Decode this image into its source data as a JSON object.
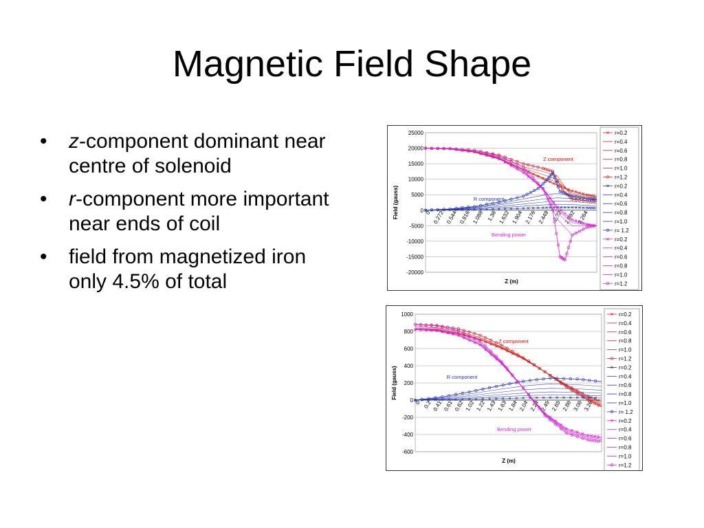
{
  "slide": {
    "title": "Magnetic Field Shape",
    "bullets": [
      {
        "em": "z",
        "text": "-component dominant near centre of solenoid"
      },
      {
        "em": "r",
        "text": "-component more important near ends of coil"
      },
      {
        "em": "",
        "text": "field from magnetized iron only 4.5% of total"
      }
    ]
  },
  "colors": {
    "z": "#cc2222",
    "r": "#2233aa",
    "bend": "#cc22cc",
    "zlabel": "#dd0000",
    "rlabel": "#2233aa",
    "blabel": "#dd22dd"
  },
  "chart_data": [
    {
      "type": "line",
      "xlabel": "Z (m)",
      "ylabel": "Field (gauss)",
      "ylim": [
        -20000,
        25000
      ],
      "yticks": [
        25000,
        20000,
        15000,
        10000,
        5000,
        0,
        -5000,
        -10000,
        -15000,
        -20000
      ],
      "x_tick_labels": [
        "0",
        "0.272",
        "0.544",
        "0.816",
        "1.088",
        "1.36",
        "1.632",
        "1.904",
        "2.176",
        "2.448",
        "2.72",
        "2.992",
        "3.264"
      ],
      "x_range": [
        0,
        3.5
      ],
      "grid": true,
      "legend_position": "right",
      "legend": [
        "r=0.2",
        "r=0.4",
        "r=0.6",
        "r=0.8",
        "r=1.0",
        "r=1.2",
        "r=0.2",
        "r=0.4",
        "r=0.6",
        "r=0.8",
        "r=1.0",
        "r= 1.2",
        "r=0.2",
        "r=0.4",
        "r=0.6",
        "r=0.8",
        "r=1.0",
        "r=1.2"
      ],
      "annotations": [
        "Z component",
        "R component",
        "Bending power"
      ],
      "series": [
        {
          "name": "r=0.2",
          "group": "z",
          "x": [
            0,
            0.5,
            1.0,
            1.5,
            2.0,
            2.4,
            2.7,
            3.0,
            3.3,
            3.5
          ],
          "values": [
            20000,
            19700,
            18700,
            16500,
            13000,
            10300,
            8000,
            6300,
            5000,
            4500
          ]
        },
        {
          "name": "r=0.4",
          "group": "z",
          "x": [
            0,
            0.5,
            1.0,
            1.5,
            2.0,
            2.4,
            2.7,
            3.0,
            3.3,
            3.5
          ],
          "values": [
            20000,
            19700,
            18700,
            16500,
            13000,
            10000,
            8000,
            6000,
            4800,
            4200
          ]
        },
        {
          "name": "r=0.6",
          "group": "z",
          "x": [
            0,
            0.5,
            1.0,
            1.5,
            2.0,
            2.4,
            2.7,
            3.0,
            3.3,
            3.5
          ],
          "values": [
            20000,
            19800,
            18800,
            16600,
            13200,
            10500,
            9000,
            5500,
            4500,
            4000
          ]
        },
        {
          "name": "r=0.8",
          "group": "z",
          "x": [
            0,
            0.5,
            1.0,
            1.5,
            2.0,
            2.4,
            2.7,
            3.0,
            3.3,
            3.5
          ],
          "values": [
            20000,
            19800,
            18900,
            16800,
            13500,
            11500,
            9800,
            5000,
            4200,
            3600
          ]
        },
        {
          "name": "r=1.0",
          "group": "z",
          "x": [
            0,
            0.5,
            1.0,
            1.5,
            2.0,
            2.4,
            2.7,
            3.0,
            3.3,
            3.5
          ],
          "values": [
            20000,
            19800,
            19000,
            17200,
            14000,
            12500,
            11000,
            4000,
            3700,
            3300
          ]
        },
        {
          "name": "r=1.2",
          "group": "z",
          "x": [
            0,
            0.5,
            1.0,
            1.5,
            2.0,
            2.4,
            2.6,
            2.8,
            3.0,
            3.3,
            3.5
          ],
          "values": [
            20000,
            19900,
            19300,
            17800,
            15000,
            13500,
            12500,
            6500,
            3500,
            3000,
            2800
          ]
        },
        {
          "name": "r=0.2",
          "group": "r",
          "x": [
            0,
            0.5,
            1.0,
            1.5,
            2.0,
            2.4,
            2.7,
            3.0,
            3.3,
            3.5
          ],
          "values": [
            0,
            80,
            200,
            400,
            600,
            800,
            900,
            900,
            800,
            700
          ]
        },
        {
          "name": "r=0.4",
          "group": "r",
          "x": [
            0,
            0.5,
            1.0,
            1.5,
            2.0,
            2.4,
            2.7,
            3.0,
            3.3,
            3.5
          ],
          "values": [
            0,
            150,
            400,
            800,
            1300,
            1700,
            1900,
            1800,
            1600,
            1400
          ]
        },
        {
          "name": "r=0.6",
          "group": "r",
          "x": [
            0,
            0.5,
            1.0,
            1.5,
            2.0,
            2.4,
            2.7,
            3.0,
            3.3,
            3.5
          ],
          "values": [
            0,
            200,
            600,
            1200,
            2000,
            2600,
            3000,
            2800,
            2400,
            2100
          ]
        },
        {
          "name": "r=0.8",
          "group": "r",
          "x": [
            0,
            0.5,
            1.0,
            1.5,
            2.0,
            2.4,
            2.7,
            3.0,
            3.3,
            3.5
          ],
          "values": [
            0,
            300,
            800,
            1700,
            2800,
            3600,
            4000,
            3700,
            3100,
            2700
          ]
        },
        {
          "name": "r=1.0",
          "group": "r",
          "x": [
            0,
            0.5,
            1.0,
            1.5,
            2.0,
            2.4,
            2.7,
            3.0,
            3.3,
            3.5
          ],
          "values": [
            0,
            350,
            1000,
            2100,
            3600,
            4800,
            5500,
            4600,
            3800,
            3200
          ]
        },
        {
          "name": "r= 1.2",
          "group": "r",
          "x": [
            0,
            0.5,
            1.0,
            1.5,
            2.0,
            2.3,
            2.5,
            2.6,
            2.75,
            3.0,
            3.3,
            3.5
          ],
          "values": [
            0,
            400,
            1200,
            2600,
            4500,
            7000,
            10000,
            12000,
            6000,
            4500,
            3800,
            3500
          ]
        },
        {
          "name": "r=0.2",
          "group": "bend",
          "x": [
            0,
            0.5,
            1.0,
            1.5,
            2.0,
            2.4,
            2.7,
            3.0,
            3.3,
            3.5
          ],
          "values": [
            20000,
            19800,
            18900,
            16600,
            12000,
            7000,
            1000,
            -3000,
            -4500,
            -5000
          ]
        },
        {
          "name": "r=0.4",
          "group": "bend",
          "x": [
            0,
            0.5,
            1.0,
            1.5,
            2.0,
            2.4,
            2.7,
            3.0,
            3.3,
            3.5
          ],
          "values": [
            20000,
            19800,
            18900,
            16700,
            12200,
            7200,
            500,
            -3500,
            -4600,
            -5000
          ]
        },
        {
          "name": "r=0.6",
          "group": "bend",
          "x": [
            0,
            0.5,
            1.0,
            1.5,
            2.0,
            2.4,
            2.7,
            3.0,
            3.3,
            3.5
          ],
          "values": [
            20000,
            19800,
            19000,
            16800,
            12500,
            7000,
            0,
            -4000,
            -4800,
            -5000
          ]
        },
        {
          "name": "r=0.8",
          "group": "bend",
          "x": [
            0,
            0.5,
            1.0,
            1.5,
            2.0,
            2.4,
            2.7,
            3.0,
            3.3,
            3.5
          ],
          "values": [
            20000,
            19800,
            19000,
            16900,
            12800,
            6500,
            -1000,
            -5000,
            -5000,
            -5000
          ]
        },
        {
          "name": "r=1.0",
          "group": "bend",
          "x": [
            0,
            0.5,
            1.0,
            1.5,
            2.0,
            2.4,
            2.7,
            3.0,
            3.3,
            3.5
          ],
          "values": [
            20000,
            19800,
            19000,
            17000,
            13000,
            7000,
            -3000,
            -8000,
            -5500,
            -5000
          ]
        },
        {
          "name": "r=1.2",
          "group": "bend",
          "x": [
            0,
            0.5,
            1.0,
            1.5,
            2.0,
            2.4,
            2.6,
            2.75,
            2.85,
            3.0,
            3.3,
            3.5
          ],
          "values": [
            20000,
            19900,
            19300,
            17500,
            14000,
            7000,
            0,
            -15000,
            -16000,
            -8000,
            -5500,
            -5000
          ]
        }
      ]
    },
    {
      "type": "line",
      "xlabel": "Z (m)",
      "ylabel": "Field (gauss)",
      "ylim": [
        -600,
        1000
      ],
      "yticks": [
        1000,
        800,
        600,
        400,
        200,
        0,
        -200,
        -400,
        -600
      ],
      "x_tick_labels": [
        "0",
        "0.2",
        "0.41",
        "0.61",
        "0.82",
        "1.02",
        "1.22",
        "1.43",
        "1.63",
        "1.84",
        "2.04",
        "2.24",
        "2.45",
        "2.65",
        "2.86",
        "3.06",
        "3.26"
      ],
      "x_range": [
        0,
        3.45
      ],
      "grid": true,
      "legend_position": "right",
      "legend": [
        "r=0.2",
        "r=0.4",
        "r=0.6",
        "r=0.8",
        "r=1.0",
        "r=1.2",
        "r=0.2",
        "r=0.4",
        "r=0.6",
        "r=0.8",
        "r=1.0",
        "r= 1.2",
        "r=0.2",
        "r=0.4",
        "r=0.6",
        "r=0.8",
        "r=1.0",
        "r=1.2"
      ],
      "annotations": [
        "Z component",
        "R component",
        "Bending power"
      ],
      "series": [
        {
          "name": "r=0.2",
          "group": "z",
          "x": [
            0,
            0.4,
            0.8,
            1.2,
            1.6,
            2.0,
            2.4,
            2.8,
            3.2,
            3.45
          ],
          "values": [
            820,
            810,
            770,
            700,
            600,
            480,
            330,
            180,
            50,
            -20
          ]
        },
        {
          "name": "r=0.4",
          "group": "z",
          "x": [
            0,
            0.4,
            0.8,
            1.2,
            1.6,
            2.0,
            2.4,
            2.8,
            3.2,
            3.45
          ],
          "values": [
            825,
            815,
            775,
            705,
            605,
            480,
            330,
            175,
            40,
            -35
          ]
        },
        {
          "name": "r=0.6",
          "group": "z",
          "x": [
            0,
            0.4,
            0.8,
            1.2,
            1.6,
            2.0,
            2.4,
            2.8,
            3.2,
            3.45
          ],
          "values": [
            830,
            820,
            780,
            710,
            610,
            485,
            330,
            170,
            30,
            -50
          ]
        },
        {
          "name": "r=0.8",
          "group": "z",
          "x": [
            0,
            0.4,
            0.8,
            1.2,
            1.6,
            2.0,
            2.4,
            2.8,
            3.2,
            3.45
          ],
          "values": [
            840,
            830,
            790,
            720,
            615,
            485,
            330,
            165,
            20,
            -60
          ]
        },
        {
          "name": "r=1.0",
          "group": "z",
          "x": [
            0,
            0.4,
            0.8,
            1.2,
            1.6,
            2.0,
            2.4,
            2.8,
            3.2,
            3.45
          ],
          "values": [
            855,
            845,
            805,
            730,
            620,
            490,
            330,
            160,
            10,
            -70
          ]
        },
        {
          "name": "r=1.2",
          "group": "z",
          "x": [
            0,
            0.4,
            0.8,
            1.2,
            1.6,
            2.0,
            2.4,
            2.8,
            3.2,
            3.45
          ],
          "values": [
            880,
            870,
            830,
            755,
            640,
            495,
            330,
            150,
            0,
            -80
          ]
        },
        {
          "name": "r=0.2",
          "group": "r",
          "x": [
            0,
            0.5,
            1.0,
            1.5,
            2.0,
            2.5,
            3.0,
            3.45
          ],
          "values": [
            0,
            4,
            10,
            18,
            25,
            30,
            30,
            25
          ]
        },
        {
          "name": "r=0.4",
          "group": "r",
          "x": [
            0,
            0.5,
            1.0,
            1.5,
            2.0,
            2.5,
            3.0,
            3.45
          ],
          "values": [
            0,
            8,
            22,
            38,
            52,
            60,
            58,
            50
          ]
        },
        {
          "name": "r=0.6",
          "group": "r",
          "x": [
            0,
            0.5,
            1.0,
            1.5,
            2.0,
            2.5,
            3.0,
            3.45
          ],
          "values": [
            0,
            14,
            36,
            60,
            82,
            95,
            92,
            80
          ]
        },
        {
          "name": "r=0.8",
          "group": "r",
          "x": [
            0,
            0.5,
            1.0,
            1.5,
            2.0,
            2.5,
            3.0,
            3.45
          ],
          "values": [
            0,
            20,
            52,
            88,
            120,
            138,
            132,
            115
          ]
        },
        {
          "name": "r=1.0",
          "group": "r",
          "x": [
            0,
            0.5,
            1.0,
            1.5,
            2.0,
            2.5,
            3.0,
            3.45
          ],
          "values": [
            0,
            28,
            72,
            120,
            165,
            190,
            180,
            160
          ]
        },
        {
          "name": "r= 1.2",
          "group": "r",
          "x": [
            0,
            0.5,
            1.0,
            1.5,
            2.0,
            2.5,
            3.0,
            3.45
          ],
          "values": [
            0,
            38,
            95,
            160,
            220,
            255,
            245,
            215
          ]
        },
        {
          "name": "r=0.2",
          "group": "bend",
          "x": [
            0,
            0.4,
            0.8,
            1.2,
            1.6,
            2.0,
            2.4,
            2.8,
            3.2,
            3.45
          ],
          "values": [
            820,
            805,
            750,
            640,
            420,
            140,
            -150,
            -330,
            -410,
            -430
          ]
        },
        {
          "name": "r=0.4",
          "group": "bend",
          "x": [
            0,
            0.4,
            0.8,
            1.2,
            1.6,
            2.0,
            2.4,
            2.8,
            3.2,
            3.45
          ],
          "values": [
            825,
            810,
            755,
            645,
            425,
            140,
            -155,
            -340,
            -420,
            -440
          ]
        },
        {
          "name": "r=0.6",
          "group": "bend",
          "x": [
            0,
            0.4,
            0.8,
            1.2,
            1.6,
            2.0,
            2.4,
            2.8,
            3.2,
            3.45
          ],
          "values": [
            830,
            815,
            760,
            650,
            430,
            140,
            -160,
            -350,
            -430,
            -450
          ]
        },
        {
          "name": "r=0.8",
          "group": "bend",
          "x": [
            0,
            0.4,
            0.8,
            1.2,
            1.6,
            2.0,
            2.4,
            2.8,
            3.2,
            3.45
          ],
          "values": [
            840,
            825,
            770,
            660,
            435,
            140,
            -165,
            -360,
            -440,
            -460
          ]
        },
        {
          "name": "r=1.0",
          "group": "bend",
          "x": [
            0,
            0.4,
            0.8,
            1.2,
            1.6,
            2.0,
            2.4,
            2.8,
            3.2,
            3.45
          ],
          "values": [
            855,
            840,
            785,
            670,
            440,
            140,
            -170,
            -370,
            -450,
            -470
          ]
        },
        {
          "name": "r=1.2",
          "group": "bend",
          "x": [
            0,
            0.4,
            0.8,
            1.2,
            1.6,
            2.0,
            2.4,
            2.8,
            3.2,
            3.45
          ],
          "values": [
            880,
            865,
            810,
            690,
            450,
            140,
            -180,
            -385,
            -465,
            -485
          ]
        }
      ]
    }
  ]
}
